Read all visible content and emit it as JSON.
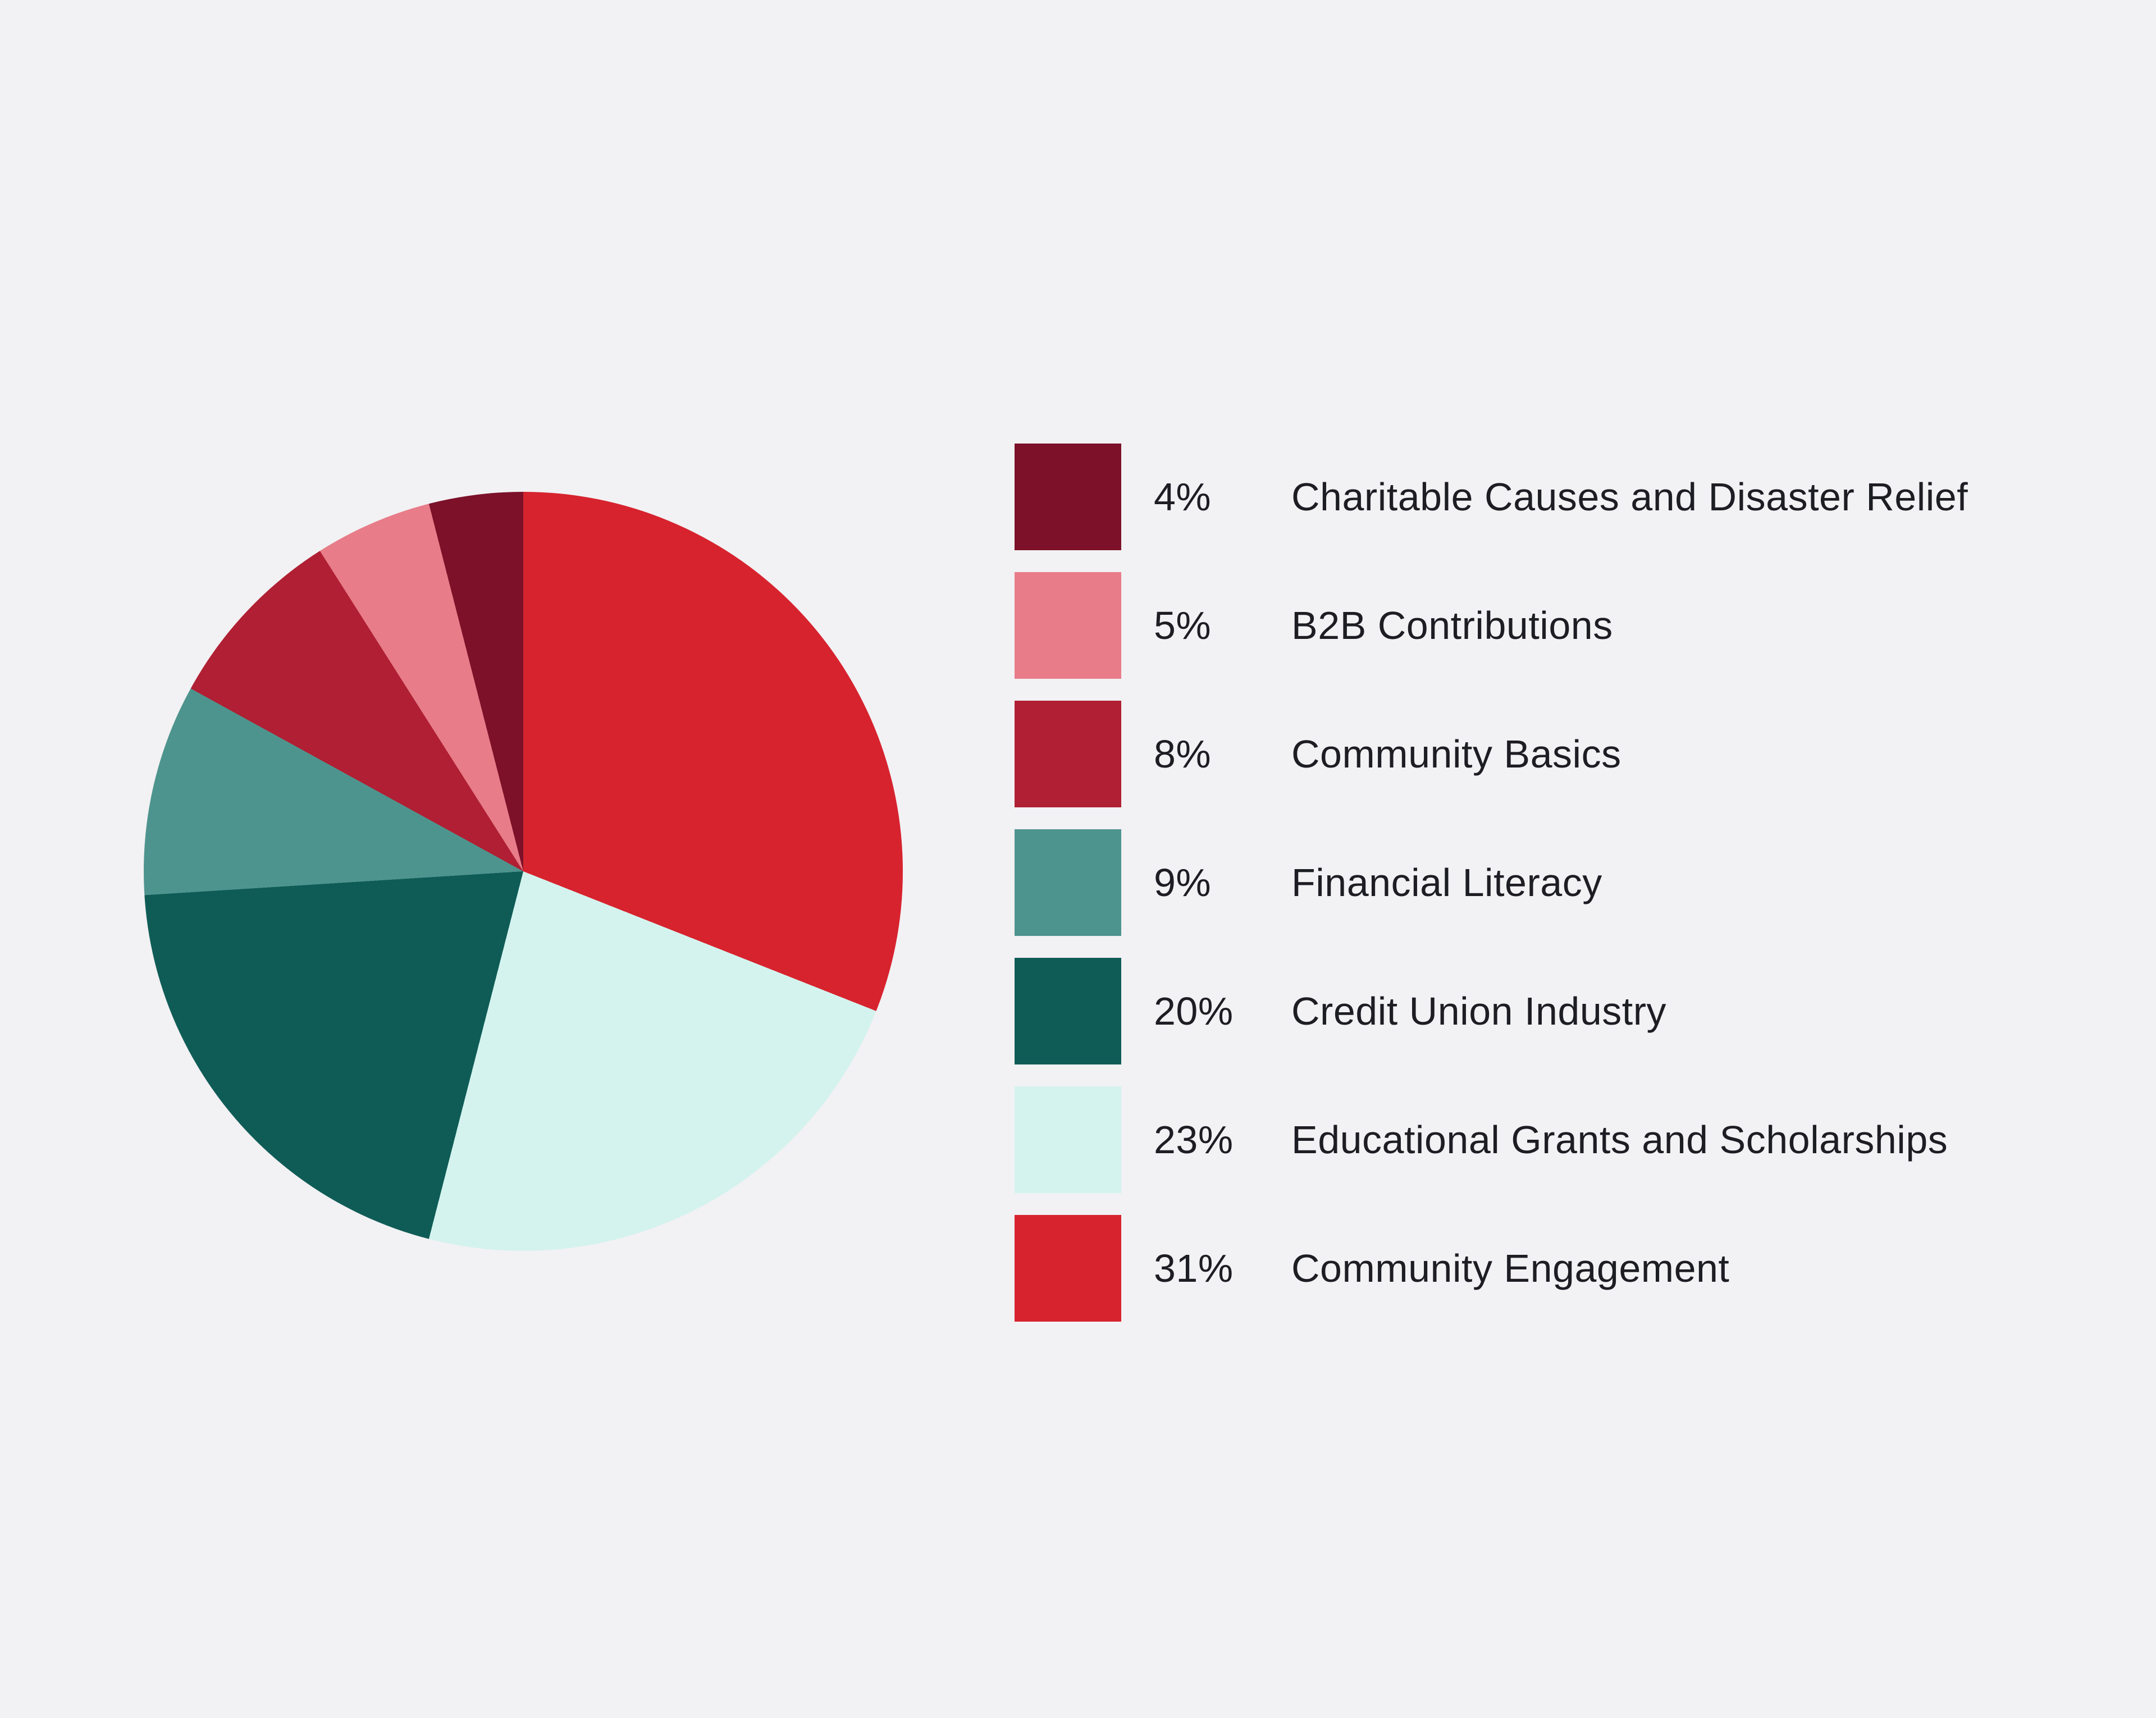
{
  "background": "#f2f1f3",
  "chart_data": {
    "type": "pie",
    "title": "",
    "legend_position": "right",
    "start_angle": "top",
    "direction_clockwise_order_desc": true,
    "slices": [
      {
        "label": "Charitable Causes and Disaster Relief",
        "value": 4,
        "pct_label": "4%",
        "color": "#7c1129"
      },
      {
        "label": "B2B Contributions",
        "value": 5,
        "pct_label": "5%",
        "color": "#e87c89"
      },
      {
        "label": "Community Basics",
        "value": 8,
        "pct_label": "8%",
        "color": "#b01f33"
      },
      {
        "label": "Financial Literacy",
        "value": 9,
        "pct_label": "9%",
        "color": "#4e948e"
      },
      {
        "label": "Credit Union Industry",
        "value": 20,
        "pct_label": "20%",
        "color": "#0f5c57"
      },
      {
        "label": "Educational Grants and Scholarships",
        "value": 23,
        "pct_label": "23%",
        "color": "#d4f3ee"
      },
      {
        "label": "Community Engagement",
        "value": 31,
        "pct_label": "31%",
        "color": "#d7232e"
      }
    ],
    "pie_clockwise_from_top": [
      "Community Engagement",
      "Educational Grants and Scholarships",
      "Credit Union Industry",
      "Financial Literacy",
      "Community Basics",
      "B2B Contributions",
      "Charitable Causes and Disaster Relief"
    ]
  }
}
